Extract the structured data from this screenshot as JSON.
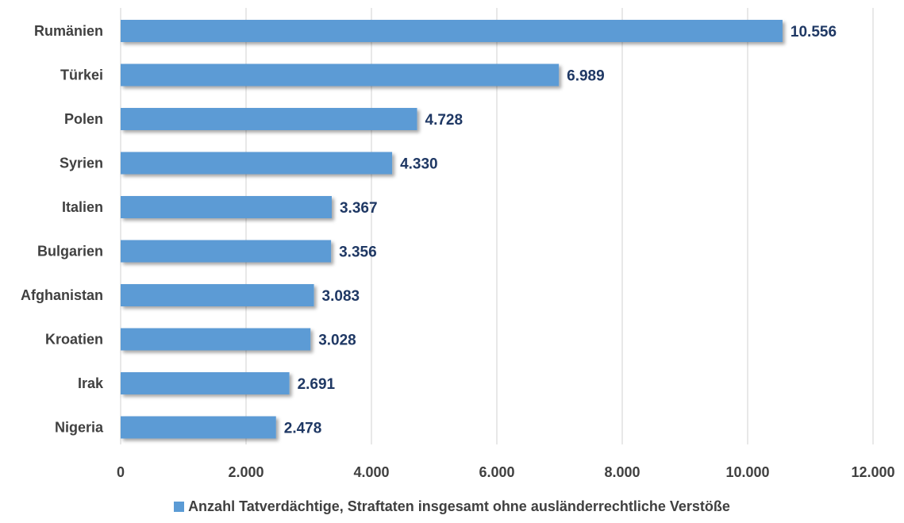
{
  "chart_data": {
    "type": "bar",
    "orientation": "horizontal",
    "categories": [
      "Rumänien",
      "Türkei",
      "Polen",
      "Syrien",
      "Italien",
      "Bulgarien",
      "Afghanistan",
      "Kroatien",
      "Irak",
      "Nigeria"
    ],
    "series": [
      {
        "name": "Anzahl Tatverdächtige, Straftaten insgesamt ohne ausländerrechtliche Verstöße",
        "values": [
          10556,
          6989,
          4728,
          4330,
          3367,
          3356,
          3083,
          3028,
          2691,
          2478
        ],
        "value_labels": [
          "10.556",
          "6.989",
          "4.728",
          "4.330",
          "3.367",
          "3.356",
          "3.083",
          "3.028",
          "2.691",
          "2.478"
        ],
        "color": "#5b9bd5"
      }
    ],
    "x_ticks": [
      0,
      2000,
      4000,
      6000,
      8000,
      10000,
      12000
    ],
    "x_tick_labels": [
      "0",
      "2.000",
      "4.000",
      "6.000",
      "8.000",
      "10.000",
      "12.000"
    ],
    "xlim": [
      0,
      12000
    ],
    "grid": "vertical",
    "legend_position": "bottom",
    "label_color": "#1f3864",
    "text_color": "#404040",
    "grid_color": "#d9d9d9"
  }
}
